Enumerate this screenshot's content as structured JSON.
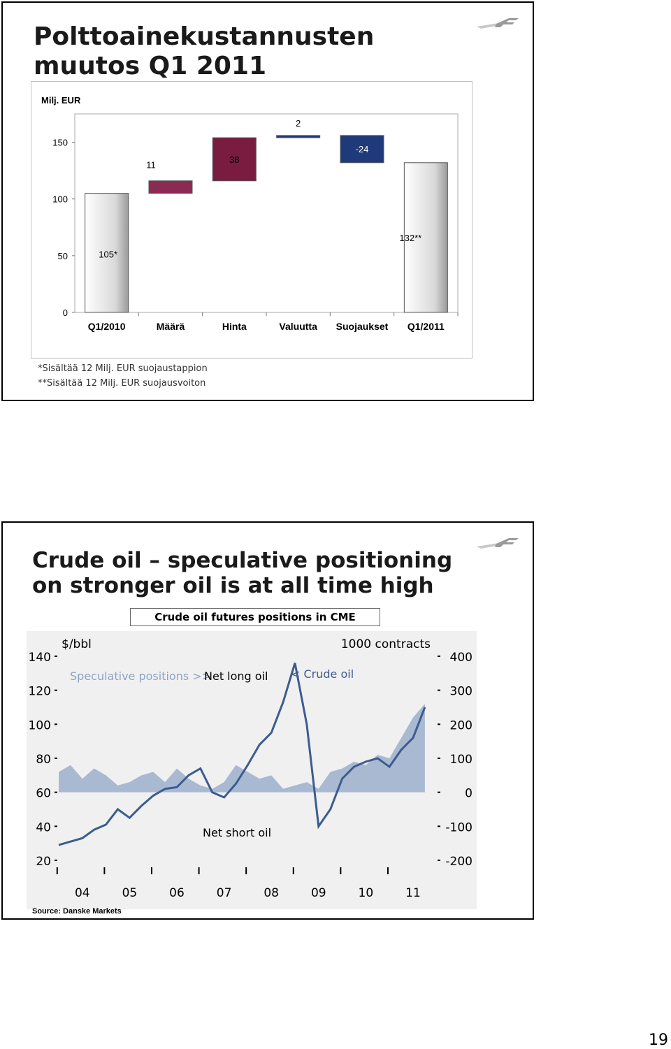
{
  "slide1": {
    "title": "Polttoainekustannusten muutos Q1 2011",
    "footnotes": [
      "*Sisältää 12 Milj. EUR suojaustappion",
      "**Sisältää 12 Milj. EUR suojausvoiton"
    ]
  },
  "slide2": {
    "title": "Crude oil – speculative positioning on stronger oil is at all time high",
    "chart_title": "Crude oil futures positions in CME",
    "source": "Source: Danske Markets"
  },
  "page_number": "19",
  "chart_data": [
    {
      "type": "bar",
      "subtype": "waterfall",
      "unit_label": "Milj. EUR",
      "categories": [
        "Q1/2010",
        "Määrä",
        "Hinta",
        "Valuutta",
        "Suojaukset",
        "Q1/2011"
      ],
      "values": [
        105,
        11,
        38,
        2,
        -24,
        132
      ],
      "data_labels": [
        "105*",
        "11",
        "38",
        "2",
        "-24",
        "132**"
      ],
      "colors": [
        "#e6e6e6",
        "#8b2a52",
        "#7a1c40",
        "#1f3a7a",
        "#1f3a7a",
        "#e6e6e6"
      ],
      "yticks": [
        0,
        50,
        100,
        150
      ],
      "ylim": [
        0,
        175
      ]
    },
    {
      "type": "line",
      "title": "",
      "left_axis_label": "$/bbl",
      "right_axis_label": "1000 contracts",
      "left_ticks": [
        20,
        40,
        60,
        80,
        100,
        120,
        140
      ],
      "right_ticks": [
        -200,
        -100,
        0,
        100,
        200,
        300,
        400
      ],
      "x_ticks": [
        "04",
        "05",
        "06",
        "07",
        "08",
        "09",
        "10",
        "11"
      ],
      "annotations": [
        "Speculative positions >>",
        "Net long oil",
        "< Crude oil",
        "Net short oil"
      ],
      "colors": {
        "crude_line": "#3d5c8f",
        "positions_area": "#a9b9d2",
        "background": "#f0f0f0"
      },
      "series": [
        {
          "name": "Crude oil",
          "axis": "left",
          "x": [
            2003.5,
            2003.75,
            2004.0,
            2004.25,
            2004.5,
            2004.75,
            2005.0,
            2005.25,
            2005.5,
            2005.75,
            2006.0,
            2006.25,
            2006.5,
            2006.75,
            2007.0,
            2007.25,
            2007.5,
            2007.75,
            2008.0,
            2008.25,
            2008.5,
            2008.75,
            2009.0,
            2009.25,
            2009.5,
            2009.75,
            2010.0,
            2010.25,
            2010.5,
            2010.75,
            2011.0,
            2011.25
          ],
          "y": [
            29,
            31,
            33,
            38,
            41,
            50,
            45,
            52,
            58,
            62,
            63,
            70,
            74,
            60,
            57,
            65,
            76,
            88,
            95,
            113,
            136,
            100,
            40,
            50,
            68,
            75,
            78,
            80,
            75,
            85,
            92,
            110
          ]
        },
        {
          "name": "Speculative positions",
          "axis": "right",
          "x": [
            2003.5,
            2003.75,
            2004.0,
            2004.25,
            2004.5,
            2004.75,
            2005.0,
            2005.25,
            2005.5,
            2005.75,
            2006.0,
            2006.25,
            2006.5,
            2006.75,
            2007.0,
            2007.25,
            2007.5,
            2007.75,
            2008.0,
            2008.25,
            2008.5,
            2008.75,
            2009.0,
            2009.25,
            2009.5,
            2009.75,
            2010.0,
            2010.25,
            2010.5,
            2010.75,
            2011.0,
            2011.25
          ],
          "y": [
            60,
            80,
            40,
            70,
            50,
            20,
            30,
            50,
            60,
            30,
            70,
            40,
            20,
            10,
            30,
            80,
            60,
            40,
            50,
            10,
            20,
            30,
            10,
            60,
            70,
            90,
            80,
            110,
            100,
            160,
            220,
            260
          ]
        }
      ]
    }
  ]
}
